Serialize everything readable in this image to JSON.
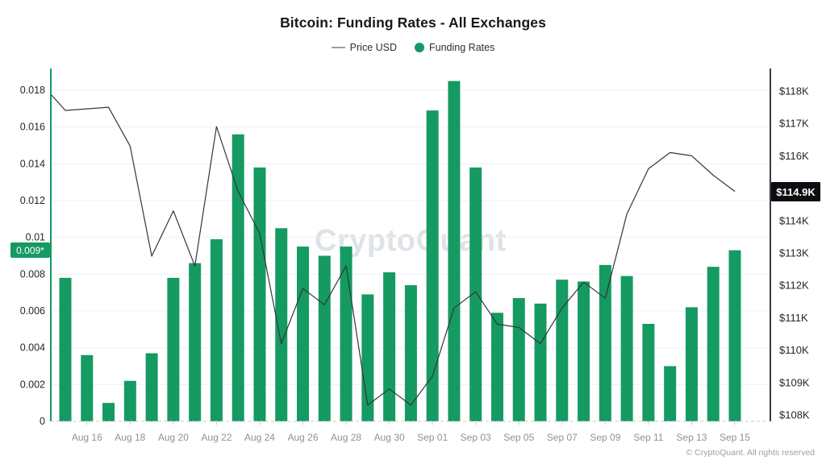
{
  "title": "Bitcoin: Funding Rates - All Exchanges",
  "legend": {
    "price": {
      "label": "Price USD",
      "marker_color": "#9aa0a6"
    },
    "funding": {
      "label": "Funding Rates",
      "marker_color": "#159a62"
    }
  },
  "watermark": "CryptoQuant",
  "copyright": "© CryptoQuant. All rights reserved",
  "badges": {
    "funding_current": {
      "text": "0.009*",
      "value": 0.0093,
      "bg": "#159a62"
    },
    "price_current": {
      "text": "$114.9K",
      "value_usd_k": 114.9,
      "bg": "#0c0d10"
    }
  },
  "colors": {
    "bar": "#159a62",
    "line": "#33363b",
    "left_axis": "#159a62",
    "right_axis": "#22242a",
    "gridline": "#eef0f3",
    "baseline": "#c9ccd2",
    "axis_label": "#23262b",
    "x_label": "#8b919c"
  },
  "chart_data": {
    "type": "bar+line combo",
    "title": "Bitcoin: Funding Rates - All Exchanges",
    "x_tick_labels": [
      "Aug 16",
      "Aug 18",
      "Aug 20",
      "Aug 22",
      "Aug 24",
      "Aug 26",
      "Aug 28",
      "Aug 30",
      "Sep 01",
      "Sep 03",
      "Sep 05",
      "Sep 07",
      "Sep 09",
      "Sep 11",
      "Sep 13",
      "Sep 15"
    ],
    "dates": [
      "Aug 15",
      "Aug 16",
      "Aug 17",
      "Aug 18",
      "Aug 19",
      "Aug 20",
      "Aug 21",
      "Aug 22",
      "Aug 23",
      "Aug 24",
      "Aug 25",
      "Aug 26",
      "Aug 27",
      "Aug 28",
      "Aug 29",
      "Aug 30",
      "Aug 31",
      "Sep 01",
      "Sep 02",
      "Sep 03",
      "Sep 04",
      "Sep 05",
      "Sep 06",
      "Sep 07",
      "Sep 08",
      "Sep 09",
      "Sep 10",
      "Sep 11",
      "Sep 12",
      "Sep 13",
      "Sep 14",
      "Sep 15"
    ],
    "series": [
      {
        "name": "Funding Rates",
        "type": "bar",
        "axis": "left",
        "values": [
          0.0078,
          0.0036,
          0.001,
          0.0022,
          0.0037,
          0.0078,
          0.0086,
          0.0099,
          0.0156,
          0.0138,
          0.0105,
          0.0095,
          0.009,
          0.0095,
          0.0069,
          0.0081,
          0.0074,
          0.0169,
          0.0185,
          0.0138,
          0.0059,
          0.0067,
          0.0064,
          0.0077,
          0.0076,
          0.0085,
          0.0079,
          0.0053,
          0.003,
          0.0062,
          0.0084,
          0.0093
        ]
      },
      {
        "name": "Price USD",
        "type": "line",
        "axis": "right",
        "unit": "USD thousands",
        "edge_start_value": 117.9,
        "values": [
          117.4,
          117.45,
          117.5,
          116.3,
          112.9,
          114.3,
          112.6,
          116.9,
          114.9,
          113.6,
          110.2,
          111.9,
          111.4,
          112.6,
          108.3,
          108.8,
          108.3,
          109.2,
          111.3,
          111.8,
          110.8,
          110.7,
          110.2,
          111.3,
          112.1,
          111.6,
          114.2,
          115.6,
          116.1,
          116.0,
          115.4,
          114.9
        ]
      }
    ],
    "left_axis": {
      "ticks": [
        0,
        0.002,
        0.004,
        0.006,
        0.008,
        0.01,
        0.012,
        0.014,
        0.016,
        0.018
      ],
      "range": [
        0,
        0.018
      ],
      "side": "left"
    },
    "right_axis": {
      "ticks_usd_k": [
        108,
        109,
        110,
        111,
        112,
        113,
        114,
        115,
        116,
        117,
        118
      ],
      "hidden_tick_usd_k": 115,
      "tick_format": "$NK",
      "range_usd_k": [
        108,
        118
      ],
      "side": "right"
    },
    "grid": "horizontal only",
    "legend_position": "top center"
  }
}
